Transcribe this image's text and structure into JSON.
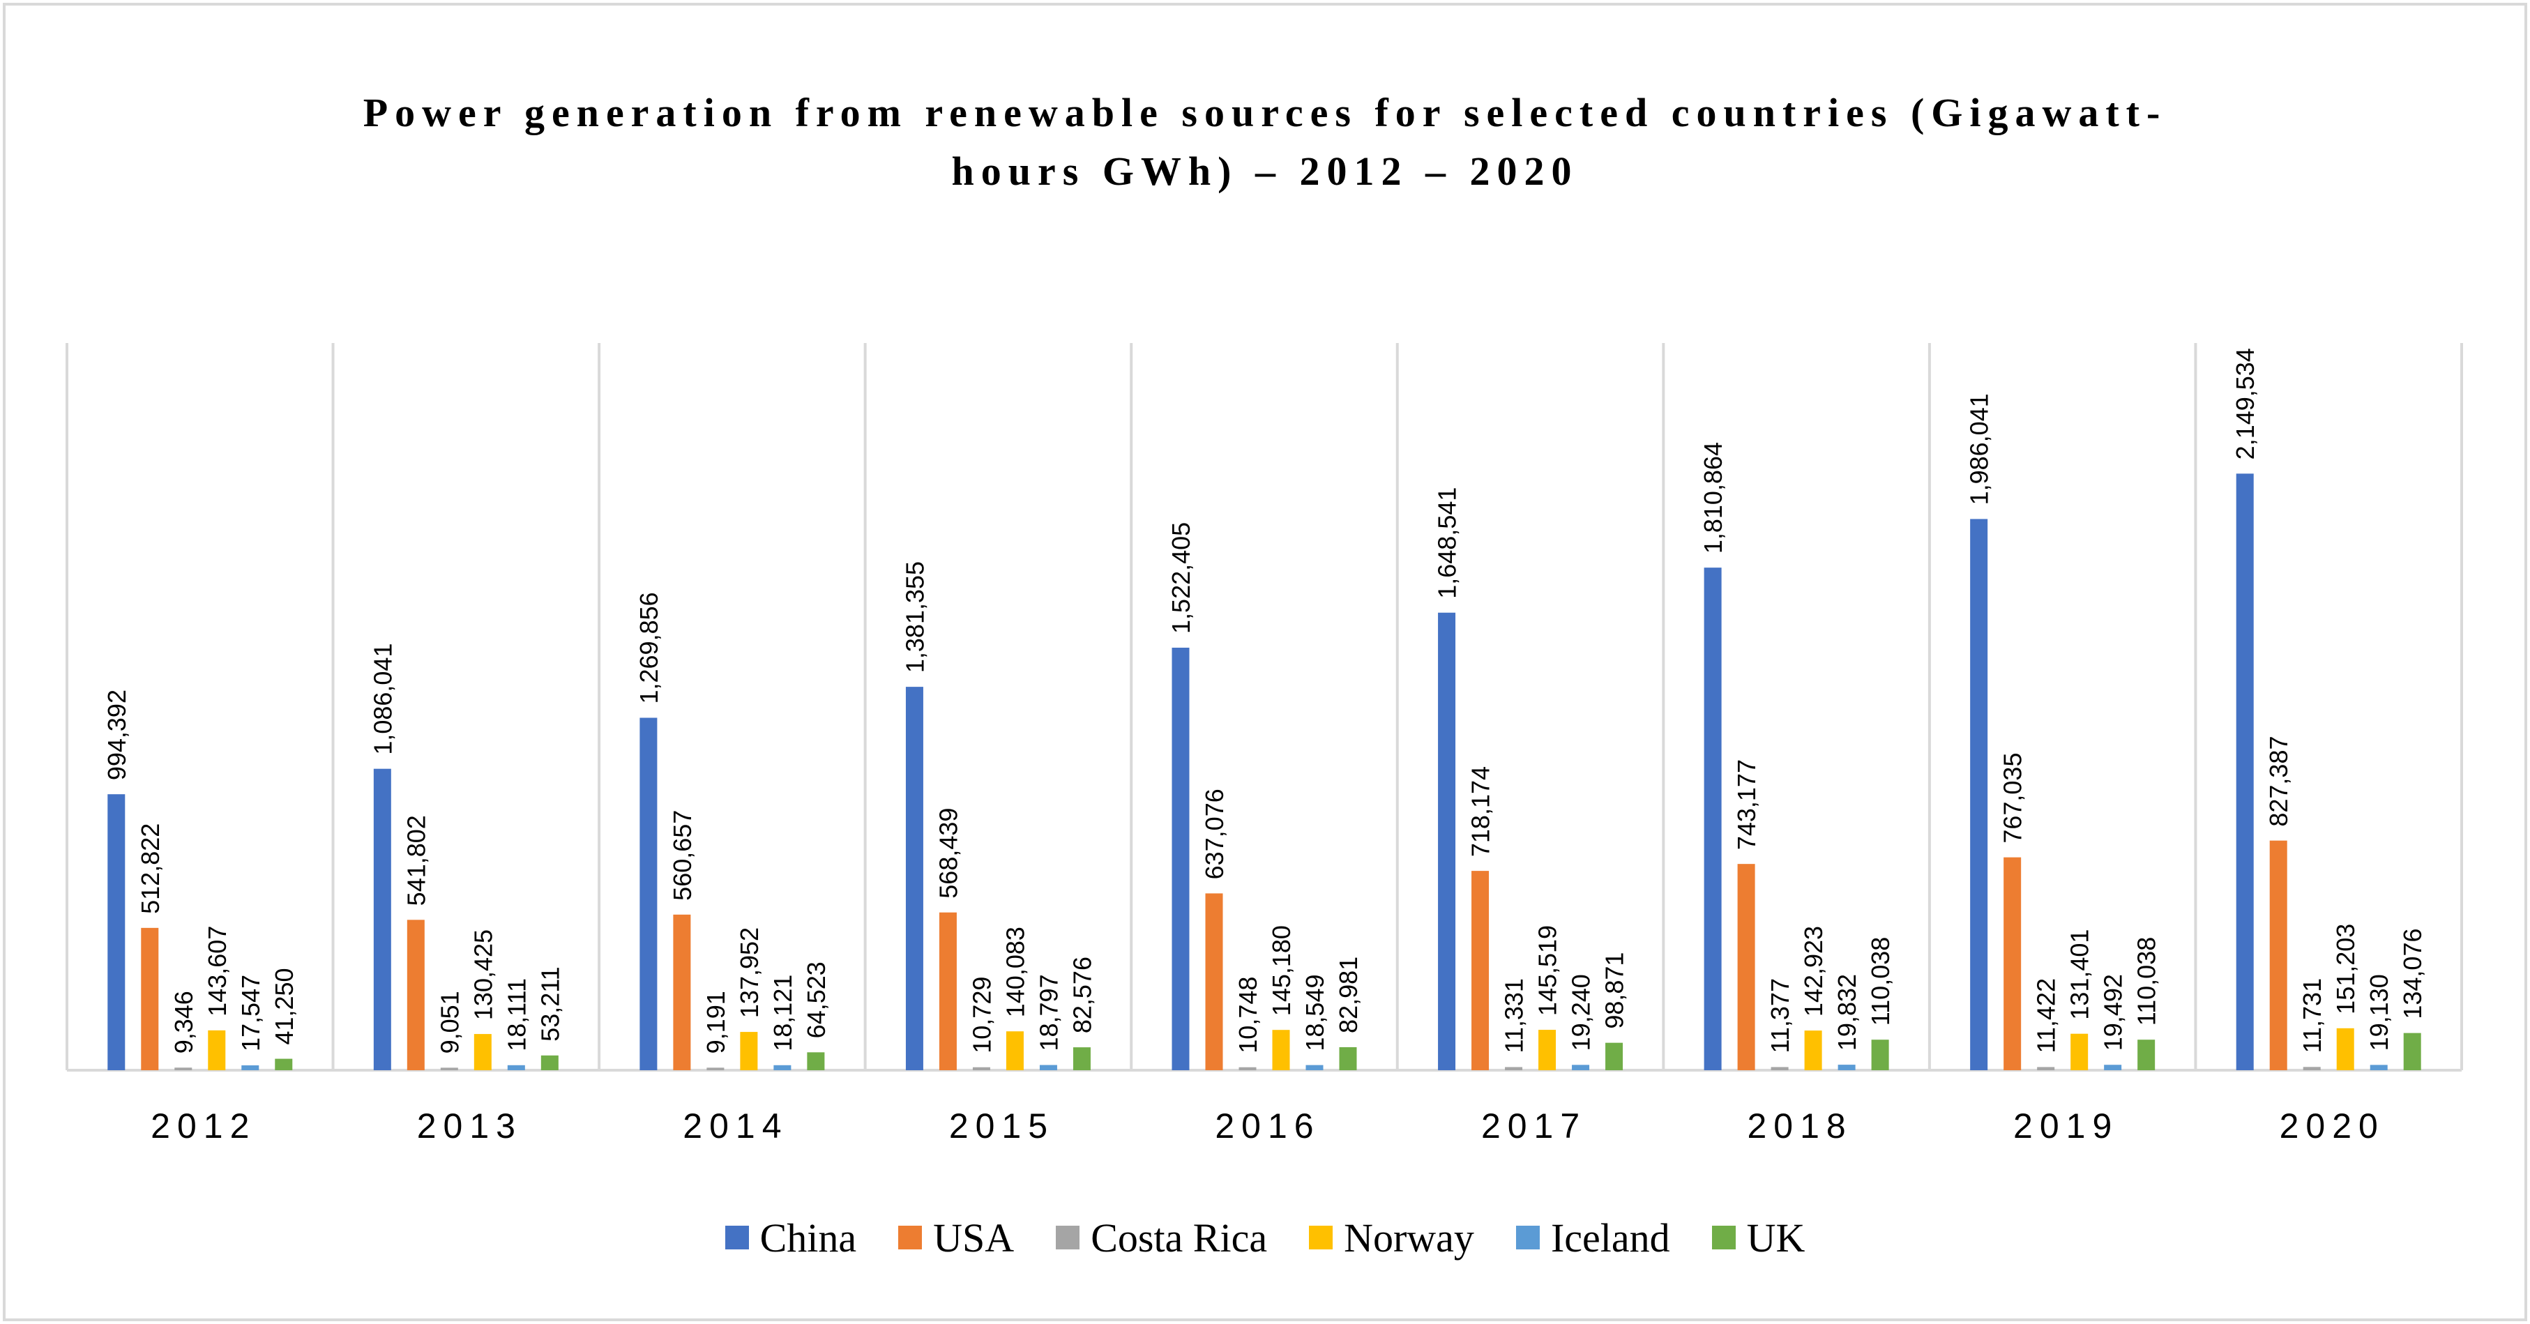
{
  "chart_data": {
    "type": "bar",
    "title_lines": [
      "Power generation from renewable sources for selected countries (Gigawatt-",
      "hours GWh) – 2012 – 2020"
    ],
    "categories": [
      "2012",
      "2013",
      "2014",
      "2015",
      "2016",
      "2017",
      "2018",
      "2019",
      "2020"
    ],
    "series": [
      {
        "name": "China",
        "color": "#4472c4",
        "values": [
          994392,
          1086041,
          1269856,
          1381355,
          1522405,
          1648541,
          1810864,
          1986041,
          2149534
        ],
        "labels": [
          "994,392",
          "1,086,041",
          "1,269,856",
          "1,381,355",
          "1,522,405",
          "1,648,541",
          "1,810,864",
          "1,986,041",
          "2,149,534"
        ]
      },
      {
        "name": "USA",
        "color": "#ed7d31",
        "values": [
          512822,
          541802,
          560657,
          568439,
          637076,
          718174,
          743177,
          767035,
          827387
        ],
        "labels": [
          "512,822",
          "541,802",
          "560,657",
          "568,439",
          "637,076",
          "718,174",
          "743,177",
          "767,035",
          "827,387"
        ]
      },
      {
        "name": "Costa Rica",
        "color": "#a5a5a5",
        "values": [
          9346,
          9051,
          9191,
          10729,
          10748,
          11331,
          11377,
          11422,
          11731
        ],
        "labels": [
          "9,346",
          "9,051",
          "9,191",
          "10,729",
          "10,748",
          "11,331",
          "11,377",
          "11,422",
          "11,731"
        ]
      },
      {
        "name": "Norway",
        "color": "#ffc000",
        "values": [
          143607,
          130425,
          137952,
          140083,
          145180,
          145519,
          142923,
          131401,
          151203
        ],
        "labels": [
          "143,607",
          "130,425",
          "137,952",
          "140,083",
          "145,180",
          "145,519",
          "142,923",
          "131,401",
          "151,203"
        ]
      },
      {
        "name": "Iceland",
        "color": "#5b9bd5",
        "values": [
          17547,
          18111,
          18121,
          18797,
          18549,
          19240,
          19832,
          19492,
          19130
        ],
        "labels": [
          "17,547",
          "18,111",
          "18,121",
          "18,797",
          "18,549",
          "19,240",
          "19,832",
          "19,492",
          "19,130"
        ]
      },
      {
        "name": "UK",
        "color": "#70ad47",
        "values": [
          41250,
          53211,
          64523,
          82576,
          82981,
          98871,
          110038,
          110038,
          134076
        ],
        "labels": [
          "41,250",
          "53,211",
          "64,523",
          "82,576",
          "82,981",
          "98,871",
          "110,038",
          "110,038",
          "134,076"
        ]
      }
    ],
    "xlabel": "",
    "ylabel": "",
    "ylim": [
      0,
      2600000
    ],
    "grid": "vertical category separators",
    "legend": "bottom"
  }
}
